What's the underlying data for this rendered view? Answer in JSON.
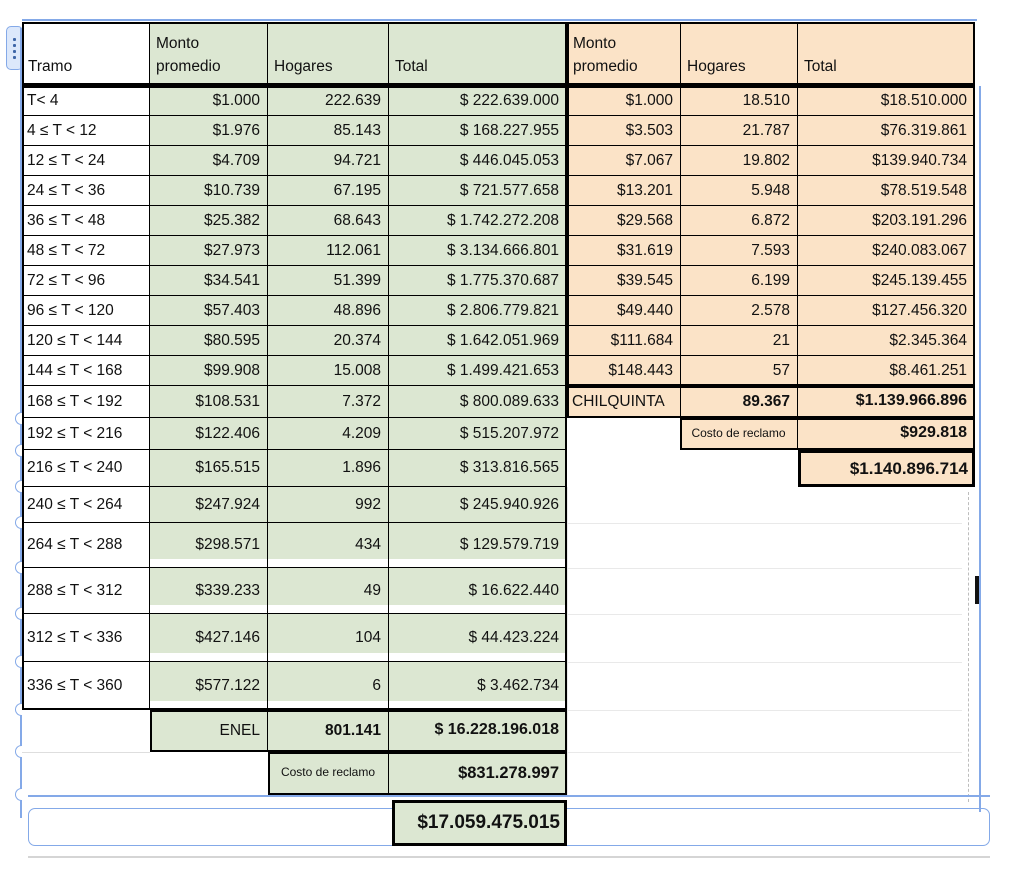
{
  "app": {
    "description": "spreadsheet table selection"
  },
  "colors": {
    "green_fill": "#dce7d2",
    "orange_fill": "#fbe3c7",
    "selection_blue": "#84a9e8",
    "border_black": "#000000"
  },
  "left_table": {
    "headers": [
      "Tramo",
      "Monto promedio",
      "Hogares",
      "Total"
    ],
    "rows": [
      {
        "tramo": "T< 4",
        "monto": "$1.000",
        "hogares": "222.639",
        "total": "$ 222.639.000"
      },
      {
        "tramo": "4 ≤ T < 12",
        "monto": "$1.976",
        "hogares": "85.143",
        "total": "$ 168.227.955"
      },
      {
        "tramo": "12 ≤ T < 24",
        "monto": "$4.709",
        "hogares": "94.721",
        "total": "$ 446.045.053"
      },
      {
        "tramo": "24 ≤ T < 36",
        "monto": "$10.739",
        "hogares": "67.195",
        "total": "$ 721.577.658"
      },
      {
        "tramo": "36 ≤ T < 48",
        "monto": "$25.382",
        "hogares": "68.643",
        "total": "$ 1.742.272.208"
      },
      {
        "tramo": "48 ≤ T < 72",
        "monto": "$27.973",
        "hogares": "112.061",
        "total": "$ 3.134.666.801"
      },
      {
        "tramo": "72 ≤ T < 96",
        "monto": "$34.541",
        "hogares": "51.399",
        "total": "$ 1.775.370.687"
      },
      {
        "tramo": "96 ≤ T < 120",
        "monto": "$57.403",
        "hogares": "48.896",
        "total": "$ 2.806.779.821"
      },
      {
        "tramo": "120 ≤ T < 144",
        "monto": "$80.595",
        "hogares": "20.374",
        "total": "$ 1.642.051.969"
      },
      {
        "tramo": "144 ≤ T < 168",
        "monto": "$99.908",
        "hogares": "15.008",
        "total": "$ 1.499.421.653"
      },
      {
        "tramo": "168 ≤ T < 192",
        "monto": "$108.531",
        "hogares": "7.372",
        "total": "$ 800.089.633"
      },
      {
        "tramo": "192 ≤ T < 216",
        "monto": "$122.406",
        "hogares": "4.209",
        "total": "$ 515.207.972"
      },
      {
        "tramo": "216 ≤ T < 240",
        "monto": "$165.515",
        "hogares": "1.896",
        "total": "$ 313.816.565"
      },
      {
        "tramo": "240 ≤ T < 264",
        "monto": "$247.924",
        "hogares": "992",
        "total": "$ 245.940.926"
      },
      {
        "tramo": "264 ≤ T < 288",
        "monto": "$298.571",
        "hogares": "434",
        "total": "$ 129.579.719"
      },
      {
        "tramo": "288 ≤ T < 312",
        "monto": "$339.233",
        "hogares": "49",
        "total": "$ 16.622.440"
      },
      {
        "tramo": "312 ≤ T < 336",
        "monto": "$427.146",
        "hogares": "104",
        "total": "$ 44.423.224"
      },
      {
        "tramo": "336 ≤ T < 360",
        "monto": "$577.122",
        "hogares": "6",
        "total": "$ 3.462.734"
      }
    ],
    "summary": {
      "company_label": "ENEL",
      "company_hogares": "801.141",
      "company_total": "$ 16.228.196.018",
      "costo_label": "Costo de reclamo",
      "costo_total": "$831.278.997",
      "grand_total": "$17.059.475.015"
    }
  },
  "right_table": {
    "headers": [
      "Monto promedio",
      "Hogares",
      "Total"
    ],
    "rows": [
      {
        "monto": "$1.000",
        "hogares": "18.510",
        "total": "$18.510.000"
      },
      {
        "monto": "$3.503",
        "hogares": "21.787",
        "total": "$76.319.861"
      },
      {
        "monto": "$7.067",
        "hogares": "19.802",
        "total": "$139.940.734"
      },
      {
        "monto": "$13.201",
        "hogares": "5.948",
        "total": "$78.519.548"
      },
      {
        "monto": "$29.568",
        "hogares": "6.872",
        "total": "$203.191.296"
      },
      {
        "monto": "$31.619",
        "hogares": "7.593",
        "total": "$240.083.067"
      },
      {
        "monto": "$39.545",
        "hogares": "6.199",
        "total": "$245.139.455"
      },
      {
        "monto": "$49.440",
        "hogares": "2.578",
        "total": "$127.456.320"
      },
      {
        "monto": "$111.684",
        "hogares": "21",
        "total": "$2.345.364"
      },
      {
        "monto": "$148.443",
        "hogares": "57",
        "total": "$8.461.251"
      }
    ],
    "summary": {
      "company_label": "CHILQUINTA",
      "company_hogares": "89.367",
      "company_total": "$1.139.966.896",
      "costo_label": "Costo de reclamo",
      "costo_total": "$929.818",
      "grand_total": "$1.140.896.714"
    }
  }
}
